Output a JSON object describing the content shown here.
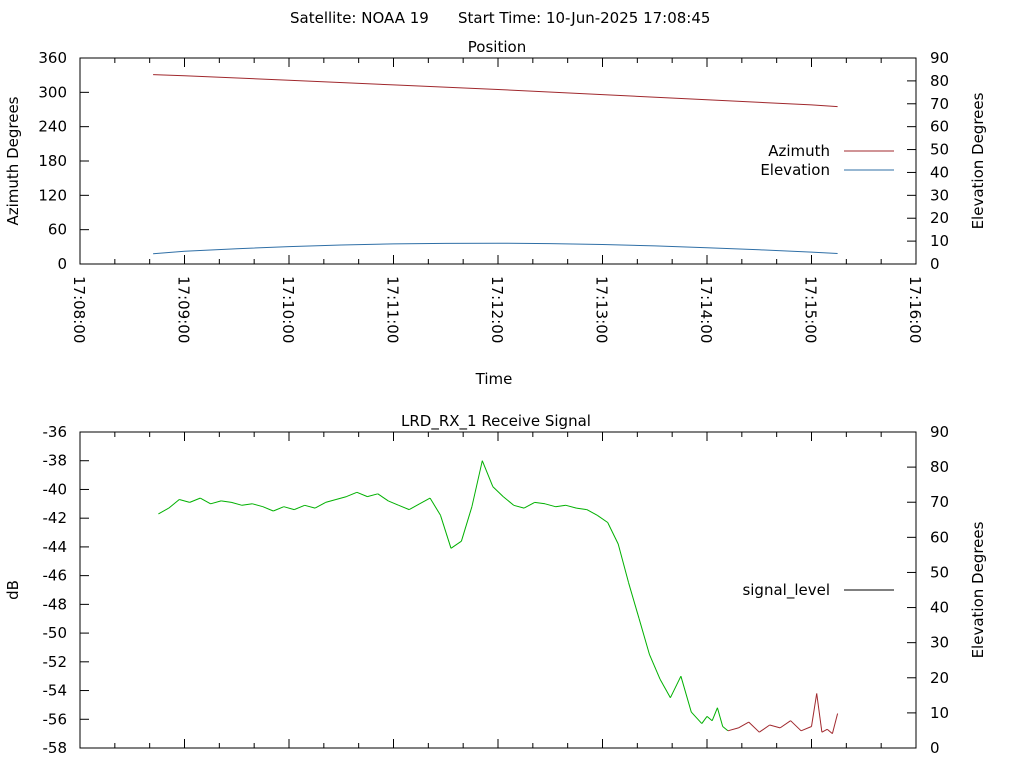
{
  "header": {
    "satellite": "Satellite: NOAA 19",
    "start_time": "Start Time: 10-Jun-2025 17:08:45"
  },
  "chart_data": [
    {
      "type": "line",
      "title": "Position",
      "xlabel": "Time",
      "ylabel": "Azimuth Degrees",
      "y2label": "Elevation Degrees",
      "x_ticks": [
        "17:08:00",
        "17:09:00",
        "17:10:00",
        "17:11:00",
        "17:12:00",
        "17:13:00",
        "17:14:00",
        "17:15:00",
        "17:16:00"
      ],
      "x_range_minutes": [
        0,
        8
      ],
      "ylim": [
        0,
        360
      ],
      "y_ticks": [
        0,
        60,
        120,
        180,
        240,
        300,
        360
      ],
      "y2lim": [
        0,
        90
      ],
      "y2_ticks": [
        0,
        10,
        20,
        30,
        40,
        50,
        60,
        70,
        80,
        90
      ],
      "legend_position": "right",
      "series": [
        {
          "name": "Azimuth",
          "axis": "y",
          "color": "#a0282d",
          "x_minutes": [
            0.7,
            1.0,
            2.0,
            3.0,
            4.0,
            5.0,
            6.0,
            7.0,
            7.25
          ],
          "values": [
            331,
            329,
            321,
            313,
            305,
            296,
            287,
            278,
            275
          ]
        },
        {
          "name": "Elevation",
          "axis": "y2",
          "color": "#2f6fa6",
          "x_minutes": [
            0.7,
            1.0,
            1.5,
            2.0,
            2.5,
            3.0,
            3.5,
            4.0,
            4.5,
            5.0,
            5.5,
            6.0,
            6.5,
            7.0,
            7.25
          ],
          "values": [
            4.5,
            5.6,
            6.7,
            7.6,
            8.3,
            8.8,
            9.0,
            9.1,
            8.9,
            8.5,
            7.9,
            7.1,
            6.2,
            5.2,
            4.6
          ]
        }
      ]
    },
    {
      "type": "line",
      "title": "LRD_RX_1 Receive Signal",
      "ylabel": "dB",
      "y2label": "Elevation Degrees",
      "x_range_minutes": [
        0,
        8
      ],
      "ylim": [
        -58,
        -36
      ],
      "y_ticks": [
        -58,
        -56,
        -54,
        -52,
        -50,
        -48,
        -46,
        -44,
        -42,
        -40,
        -38,
        -36
      ],
      "y2lim": [
        0,
        90
      ],
      "y2_ticks": [
        0,
        10,
        20,
        30,
        40,
        50,
        60,
        70,
        80,
        90
      ],
      "legend_position": "right",
      "legend_color": "#000000",
      "series": [
        {
          "name": "signal_level",
          "color_above": "#00b000",
          "color_below": "#a0282d",
          "threshold_minutes": 6.2,
          "x_minutes": [
            0.75,
            0.85,
            0.95,
            1.05,
            1.15,
            1.25,
            1.35,
            1.45,
            1.55,
            1.65,
            1.75,
            1.85,
            1.95,
            2.05,
            2.15,
            2.25,
            2.35,
            2.45,
            2.55,
            2.65,
            2.75,
            2.85,
            2.95,
            3.05,
            3.15,
            3.25,
            3.35,
            3.45,
            3.55,
            3.65,
            3.75,
            3.85,
            3.95,
            4.05,
            4.15,
            4.25,
            4.35,
            4.45,
            4.55,
            4.65,
            4.75,
            4.85,
            4.95,
            5.05,
            5.15,
            5.25,
            5.35,
            5.45,
            5.55,
            5.65,
            5.75,
            5.85,
            5.95,
            6.0,
            6.05,
            6.1,
            6.15,
            6.2,
            6.3,
            6.4,
            6.5,
            6.6,
            6.7,
            6.8,
            6.9,
            7.0,
            7.05,
            7.1,
            7.15,
            7.2,
            7.25
          ],
          "values": [
            -41.7,
            -41.3,
            -40.7,
            -40.9,
            -40.6,
            -41.0,
            -40.8,
            -40.9,
            -41.1,
            -41.0,
            -41.2,
            -41.5,
            -41.2,
            -41.4,
            -41.1,
            -41.3,
            -40.9,
            -40.7,
            -40.5,
            -40.2,
            -40.5,
            -40.3,
            -40.8,
            -41.1,
            -41.4,
            -41.0,
            -40.6,
            -41.8,
            -44.1,
            -43.6,
            -41.2,
            -38.0,
            -39.8,
            -40.5,
            -41.1,
            -41.3,
            -40.9,
            -41.0,
            -41.2,
            -41.1,
            -41.3,
            -41.4,
            -41.8,
            -42.3,
            -43.8,
            -46.5,
            -49.0,
            -51.5,
            -53.2,
            -54.5,
            -53.0,
            -55.5,
            -56.3,
            -55.8,
            -56.1,
            -55.2,
            -56.5,
            -56.8,
            -56.6,
            -56.2,
            -56.9,
            -56.4,
            -56.6,
            -56.1,
            -56.8,
            -56.5,
            -54.2,
            -56.9,
            -56.7,
            -57.0,
            -55.6
          ]
        }
      ]
    }
  ]
}
